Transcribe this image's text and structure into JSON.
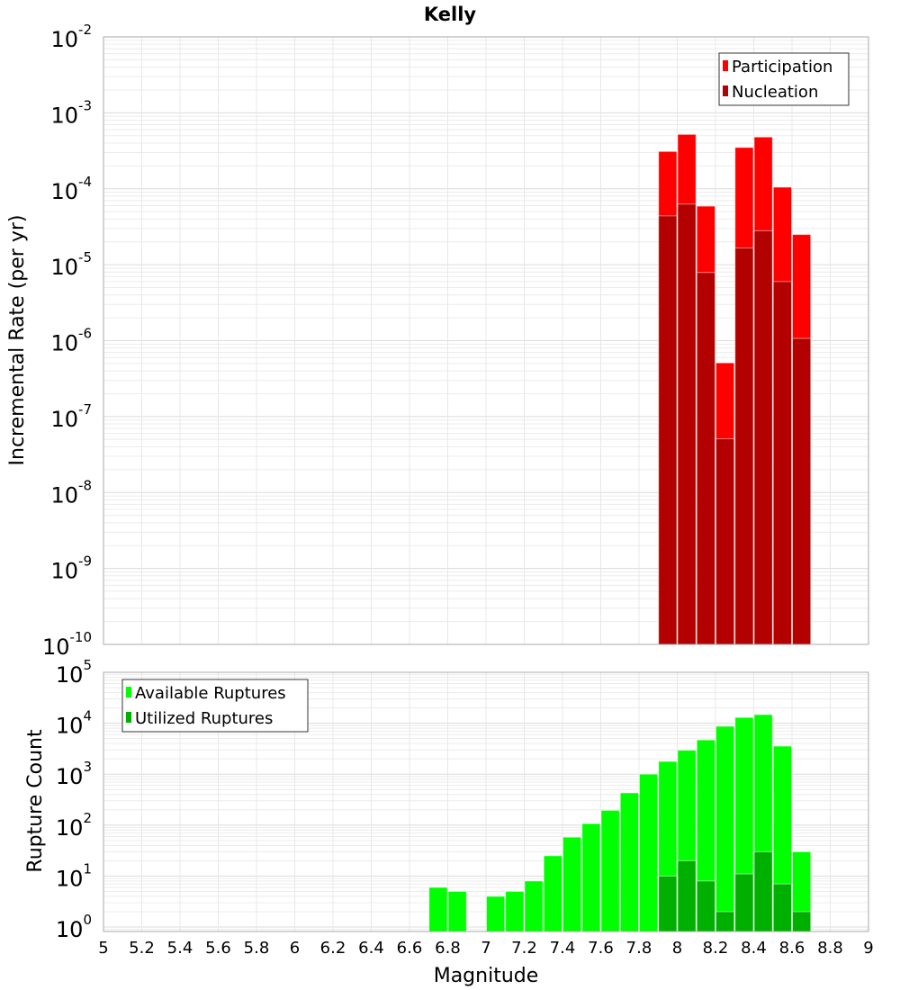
{
  "chart_data": [
    {
      "type": "bar",
      "title": "Kelly",
      "xlabel": "Magnitude",
      "ylabel": "Incremental Rate (per yr)",
      "yscale": "log",
      "ylim": [
        1e-10,
        0.01
      ],
      "xlim": [
        5,
        9
      ],
      "grid": true,
      "legend_position": "top-right",
      "y_tick_exponents": [
        "-10",
        "-9",
        "-8",
        "-7",
        "-6",
        "-5",
        "-4",
        "-3",
        "-2"
      ],
      "y_tick_base": "10",
      "bin_width": 0.1,
      "x": [
        7.9,
        8.0,
        8.1,
        8.2,
        8.3,
        8.4,
        8.5,
        8.6
      ],
      "series": [
        {
          "name": "Participation",
          "color": "#ff0000",
          "values": [
            0.00031,
            0.00052,
            5.9e-05,
            5.1e-07,
            0.00035,
            0.00048,
            0.000105,
            2.5e-05
          ]
        },
        {
          "name": "Nucleation",
          "color": "#b30000",
          "values": [
            4.4e-05,
            6.3e-05,
            7.9e-06,
            5.1e-08,
            1.66e-05,
            2.8e-05,
            6e-06,
            1.07e-06
          ]
        }
      ]
    },
    {
      "type": "bar",
      "xlabel": "Magnitude",
      "ylabel": "Rupture Count",
      "yscale": "log",
      "ylim": [
        0.81,
        100000.0
      ],
      "xlim": [
        5,
        9
      ],
      "grid": true,
      "legend_position": "top-left",
      "y_tick_exponents": [
        "0",
        "1",
        "2",
        "3",
        "4",
        "5"
      ],
      "y_tick_base": "10",
      "x_ticks": [
        "5",
        "5.2",
        "5.4",
        "5.6",
        "5.8",
        "6",
        "6.2",
        "6.4",
        "6.6",
        "6.8",
        "7",
        "7.2",
        "7.4",
        "7.6",
        "7.8",
        "8",
        "8.2",
        "8.4",
        "8.6",
        "8.8",
        "9"
      ],
      "bin_width": 0.1,
      "x": [
        6.7,
        6.8,
        7.0,
        7.1,
        7.2,
        7.3,
        7.4,
        7.5,
        7.6,
        7.7,
        7.8,
        7.9,
        8.0,
        8.1,
        8.2,
        8.3,
        8.4,
        8.5,
        8.6
      ],
      "series": [
        {
          "name": "Available Ruptures",
          "color": "#00ff00",
          "values": [
            6,
            5,
            4,
            5,
            8,
            25,
            58,
            107,
            195,
            430,
            1000,
            1780,
            2950,
            4700,
            8700,
            13000,
            14800,
            3550,
            30
          ]
        },
        {
          "name": "Utilized Ruptures",
          "color": "#00b000",
          "values": [
            0,
            0,
            0,
            0,
            0,
            0,
            0,
            0,
            0,
            0,
            0,
            10,
            20,
            8,
            2,
            11,
            30,
            7,
            2
          ]
        }
      ]
    }
  ]
}
